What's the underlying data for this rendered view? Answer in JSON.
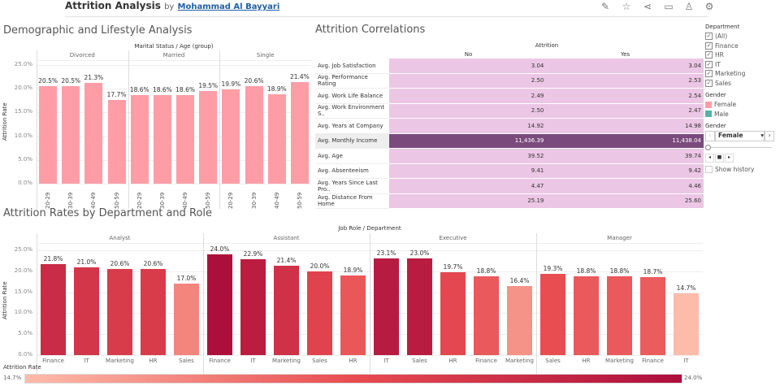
{
  "header": {
    "title": "Attrition Analysis",
    "by": "by",
    "author": "Mohammad Al Bayyari",
    "icons": [
      "edit-icon",
      "star-icon",
      "share-icon",
      "comment-icon",
      "subscribe-icon",
      "settings-icon"
    ]
  },
  "demographic": {
    "title": "Demographic and Lifestyle Analysis",
    "header": "Marital Status / Age (group)",
    "ylabel": "Attrition Rate",
    "yticks": [
      "25.0%",
      "20.0%",
      "15.0%",
      "10.0%",
      "5.0%",
      "0.0%"
    ],
    "bar_color": "#ff9da7",
    "groups": [
      {
        "name": "Divorced",
        "bars": [
          {
            "age": "20-29",
            "value": 20.5
          },
          {
            "age": "30-39",
            "value": 20.5
          },
          {
            "age": "40-49",
            "value": 21.3
          },
          {
            "age": "50-59",
            "value": 17.7
          }
        ]
      },
      {
        "name": "Married",
        "bars": [
          {
            "age": "20-29",
            "value": 18.6
          },
          {
            "age": "30-39",
            "value": 18.6
          },
          {
            "age": "40-49",
            "value": 18.6
          },
          {
            "age": "50-59",
            "value": 19.5
          }
        ]
      },
      {
        "name": "Single",
        "bars": [
          {
            "age": "20-29",
            "value": 19.9
          },
          {
            "age": "30-39",
            "value": 20.6
          },
          {
            "age": "40-49",
            "value": 18.9
          },
          {
            "age": "50-59",
            "value": 21.4
          }
        ]
      }
    ]
  },
  "correlations": {
    "title": "Attrition Correlations",
    "header": "Attrition",
    "cols": [
      "No",
      "Yes"
    ],
    "rows": [
      [
        "Avg. Job Satisfaction",
        "3.04",
        "3.04"
      ],
      [
        "Avg. Performance Rating",
        "2.50",
        "2.53"
      ],
      [
        "Avg. Work Life Balance",
        "2.49",
        "2.54"
      ],
      [
        "Avg. Work Environment S..",
        "2.50",
        "2.47"
      ],
      [
        "Avg. Years at Company",
        "14.92",
        "14.98"
      ],
      [
        "Avg. Monthly Income",
        "11,436.39",
        "11,438.04"
      ],
      [
        "Avg. Age",
        "39.52",
        "39.74"
      ],
      [
        "Avg. Absenteeism",
        "9.41",
        "9.42"
      ],
      [
        "Avg. Years Since Last Pro..",
        "4.47",
        "4.46"
      ],
      [
        "Avg. Distance From Home",
        "25.19",
        "25.60"
      ]
    ],
    "highlight_row": 5,
    "cell_color": "#ecc6e5",
    "highlight_color": "#7b4a7d"
  },
  "filters": {
    "department_title": "Department",
    "departments": [
      "(All)",
      "Finance",
      "HR",
      "IT",
      "Marketing",
      "Sales"
    ],
    "gender_legend_title": "Gender",
    "gender_legend": [
      {
        "label": "Female",
        "color": "#ff9da7"
      },
      {
        "label": "Male",
        "color": "#59b3a5"
      }
    ],
    "gender_title": "Gender",
    "gender_value": "Female",
    "show_history": "Show history"
  },
  "roles": {
    "title": "Attrition Rates by Department and Role",
    "header": "Job Role / Department",
    "ylabel": "Attrition Rate",
    "yticks": [
      "25.0%",
      "20.0%",
      "15.0%",
      "10.0%",
      "5.0%",
      "0.0%"
    ],
    "groups": [
      {
        "name": "Analyst",
        "bars": [
          {
            "dept": "Finance",
            "value": 21.8
          },
          {
            "dept": "IT",
            "value": 21.0
          },
          {
            "dept": "Marketing",
            "value": 20.6
          },
          {
            "dept": "HR",
            "value": 20.6
          },
          {
            "dept": "Sales",
            "value": 17.0
          }
        ]
      },
      {
        "name": "Assistant",
        "bars": [
          {
            "dept": "Finance",
            "value": 24.0
          },
          {
            "dept": "IT",
            "value": 22.9
          },
          {
            "dept": "Marketing",
            "value": 21.4
          },
          {
            "dept": "Sales",
            "value": 20.0
          },
          {
            "dept": "HR",
            "value": 18.9
          }
        ]
      },
      {
        "name": "Executive",
        "bars": [
          {
            "dept": "IT",
            "value": 23.1
          },
          {
            "dept": "Sales",
            "value": 23.0
          },
          {
            "dept": "HR",
            "value": 19.7
          },
          {
            "dept": "Finance",
            "value": 18.8
          },
          {
            "dept": "Marketing",
            "value": 16.4
          }
        ]
      },
      {
        "name": "Manager",
        "bars": [
          {
            "dept": "Sales",
            "value": 19.3
          },
          {
            "dept": "HR",
            "value": 18.8
          },
          {
            "dept": "Marketing",
            "value": 18.8
          },
          {
            "dept": "Finance",
            "value": 18.7
          },
          {
            "dept": "IT",
            "value": 14.7
          }
        ]
      }
    ],
    "legend_title": "Attrition Rate",
    "legend_min": "14.7%",
    "legend_max": "24.0%",
    "color_low": "#fdbcaa",
    "color_high": "#ad0f3d"
  }
}
